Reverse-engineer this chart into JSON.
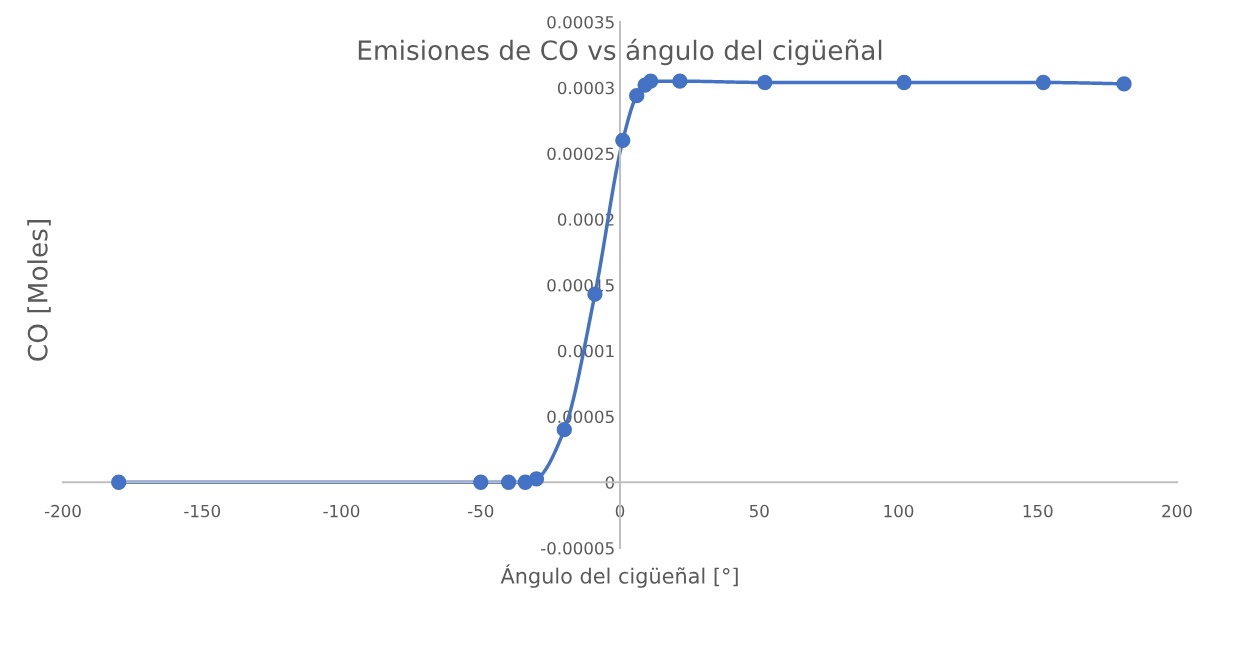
{
  "chart_data": {
    "type": "line",
    "title": "Emisiones de CO vs ángulo del cigüeñal",
    "xlabel": "Ángulo del cigüeñal [°]",
    "ylabel": "CO [Moles]",
    "x": [
      -180,
      -50,
      -40,
      -34,
      -30,
      -20,
      -9,
      1,
      6,
      9,
      11,
      21.5,
      52,
      102,
      152,
      181
    ],
    "series": [
      {
        "color": "#4472c4",
        "values": [
          0,
          0,
          0,
          0,
          2.5e-06,
          4e-05,
          0.000143,
          0.00026,
          0.000294,
          0.000302,
          0.000305,
          0.000305,
          0.000304,
          0.000304,
          0.000304,
          0.000303
        ]
      }
    ],
    "xlim": [
      -200,
      200
    ],
    "xticks": [
      -200,
      -150,
      -100,
      -50,
      0,
      50,
      100,
      150,
      200
    ],
    "ylim": [
      -5e-05,
      0.00035
    ],
    "yticks": [
      {
        "value": -5e-05,
        "label": "-0.00005"
      },
      {
        "value": 0,
        "label": "0"
      },
      {
        "value": 5e-05,
        "label": "0.00005"
      },
      {
        "value": 0.0001,
        "label": "0.0001"
      },
      {
        "value": 0.00015,
        "label": "0.00015"
      },
      {
        "value": 0.0002,
        "label": "0.0002"
      },
      {
        "value": 0.00025,
        "label": "0.00025"
      },
      {
        "value": 0.0003,
        "label": "0.0003"
      },
      {
        "value": 0.00035,
        "label": "0.00035"
      }
    ],
    "marker": "circle",
    "line_style": "solid",
    "grid": false,
    "legend": false
  }
}
